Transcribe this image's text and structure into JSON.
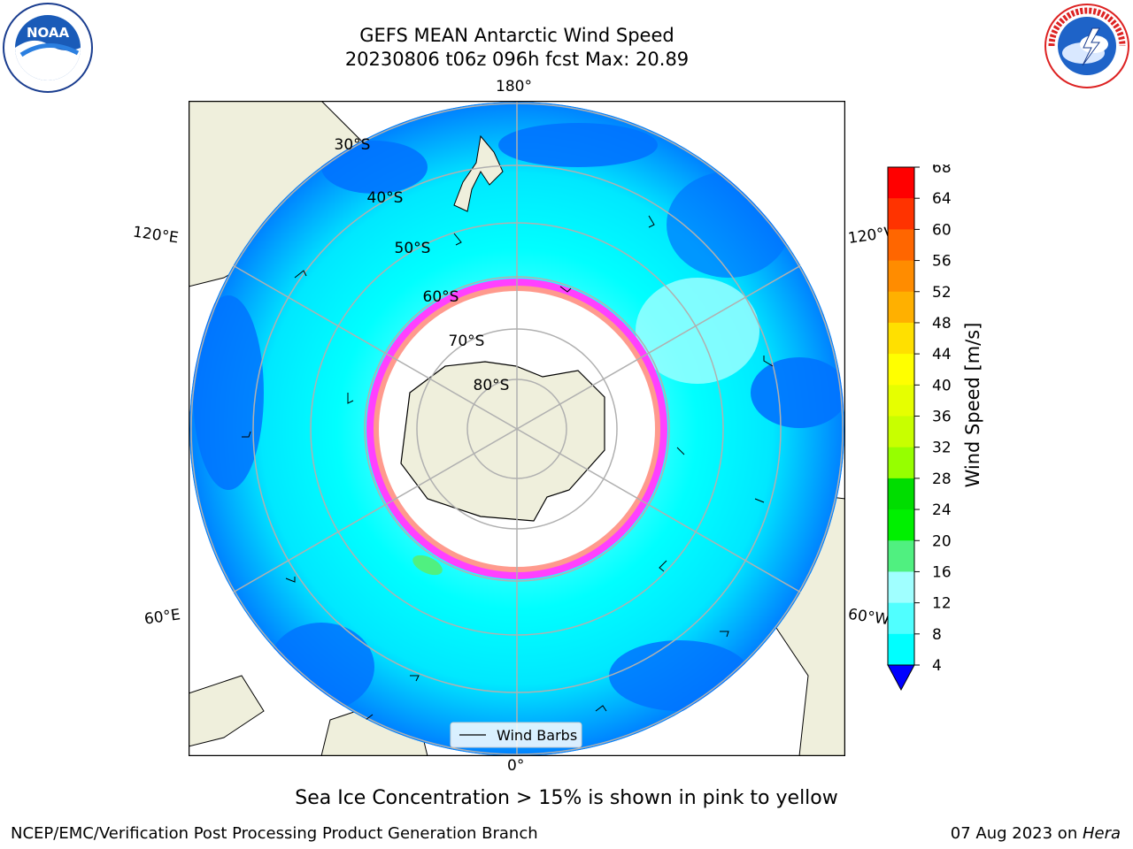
{
  "header": {
    "title_line1": "GEFS MEAN Antarctic Wind Speed",
    "title_line2": "20230806 t06z 096h fcst   Max: 20.89"
  },
  "logos": {
    "left_name": "NOAA",
    "left_ring_text": "NATIONAL OCEANIC AND ATMOSPHERIC ADMINISTRATION · U.S. DEPARTMENT OF COMMERCE",
    "right_ring_text": "NATIONAL WEATHER SERVICE"
  },
  "map": {
    "longitude_labels": {
      "top": "180°",
      "bottom": "0°",
      "upper_left": "120°E",
      "upper_right": "120°W",
      "lower_left": "60°E",
      "lower_right": "60°W"
    },
    "latitude_labels": [
      "30°S",
      "40°S",
      "50°S",
      "60°S",
      "70°S",
      "80°S"
    ],
    "legend_label": "Wind Barbs"
  },
  "colorbar": {
    "label": "Wind Speed [m/s]",
    "ticks": [
      "68",
      "64",
      "60",
      "56",
      "52",
      "48",
      "44",
      "40",
      "36",
      "32",
      "28",
      "24",
      "20",
      "16",
      "12",
      "8",
      "4"
    ],
    "colors_top_to_bottom": [
      "#ff0000",
      "#ff3300",
      "#ff6600",
      "#ff8c00",
      "#ffb000",
      "#ffe000",
      "#ffff00",
      "#e6ff00",
      "#c8ff00",
      "#96ff00",
      "#00dd00",
      "#00f000",
      "#50f080",
      "#a0ffff",
      "#50ffff",
      "#00ffff",
      "#0080ff"
    ],
    "extend_color": "#0000ff"
  },
  "colors": {
    "land": "#efefdc",
    "ocean_low": "#0073ff",
    "ocean_mid": "#00ffff",
    "ocean_high": "#5ff5ff",
    "sea_ice": "#ff00ff",
    "grid": "#b0b0b0"
  },
  "caption": "Sea Ice Concentration > 15% is shown in pink to yellow",
  "footer": {
    "left": "NCEP/EMC/Verification Post Processing Product Generation Branch",
    "right_date": "07 Aug 2023 on ",
    "right_host": "Hera"
  }
}
